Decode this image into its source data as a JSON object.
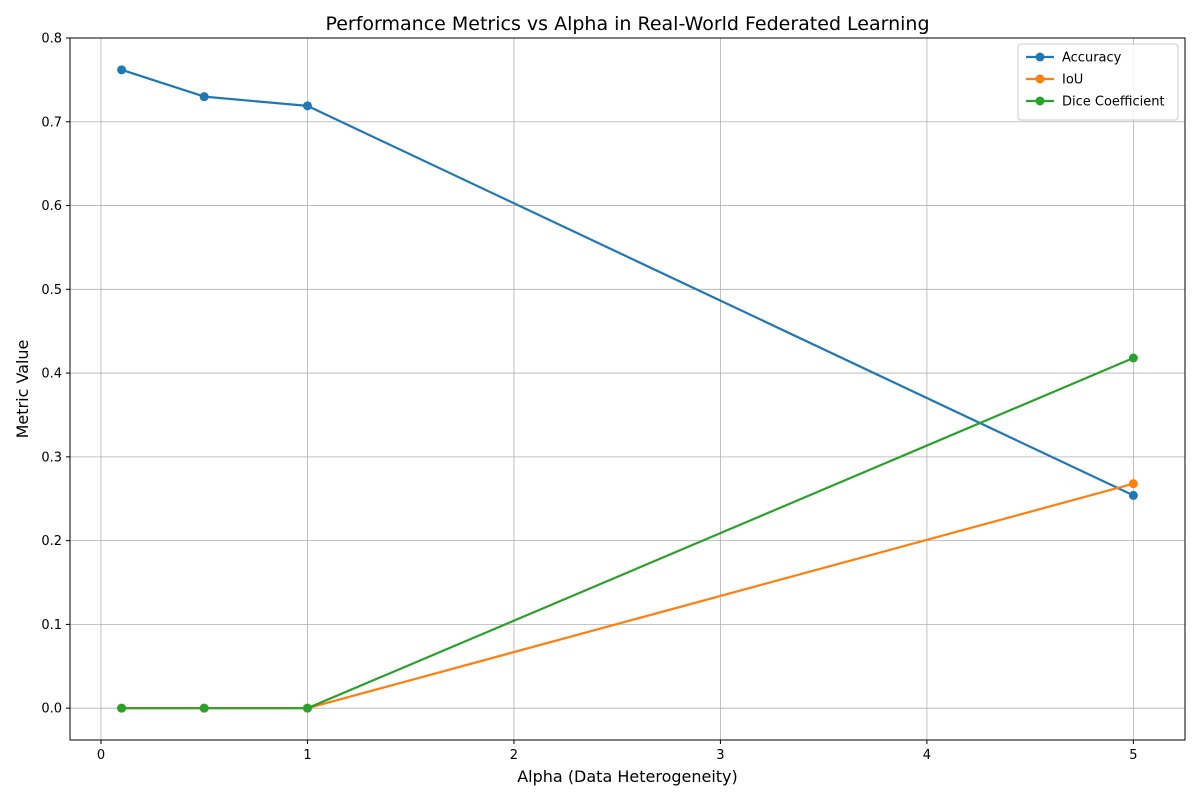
{
  "chart_data": {
    "type": "line",
    "title": "Performance Metrics vs Alpha in Real-World Federated Learning",
    "xlabel": "Alpha (Data Heterogeneity)",
    "ylabel": "Metric Value",
    "xlim": [
      -0.15,
      5.25
    ],
    "ylim": [
      -0.038,
      0.8
    ],
    "xticks": [
      0,
      1,
      2,
      3,
      4,
      5
    ],
    "xtick_labels": [
      "0",
      "1",
      "2",
      "3",
      "4",
      "5"
    ],
    "yticks": [
      0.0,
      0.1,
      0.2,
      0.3,
      0.4,
      0.5,
      0.6,
      0.7,
      0.8
    ],
    "ytick_labels": [
      "0.0",
      "0.1",
      "0.2",
      "0.3",
      "0.4",
      "0.5",
      "0.6",
      "0.7",
      "0.8"
    ],
    "grid": true,
    "legend_position": "top-right",
    "x": [
      0.1,
      0.5,
      1.0,
      5.0
    ],
    "series": [
      {
        "name": "Accuracy",
        "color": "#1f77b4",
        "values": [
          0.762,
          0.73,
          0.719,
          0.254
        ]
      },
      {
        "name": "IoU",
        "color": "#ff7f0e",
        "values": [
          0.0,
          0.0,
          0.0,
          0.268
        ]
      },
      {
        "name": "Dice Coefficient",
        "color": "#2ca02c",
        "values": [
          0.0,
          0.0,
          0.0,
          0.418
        ]
      }
    ]
  }
}
